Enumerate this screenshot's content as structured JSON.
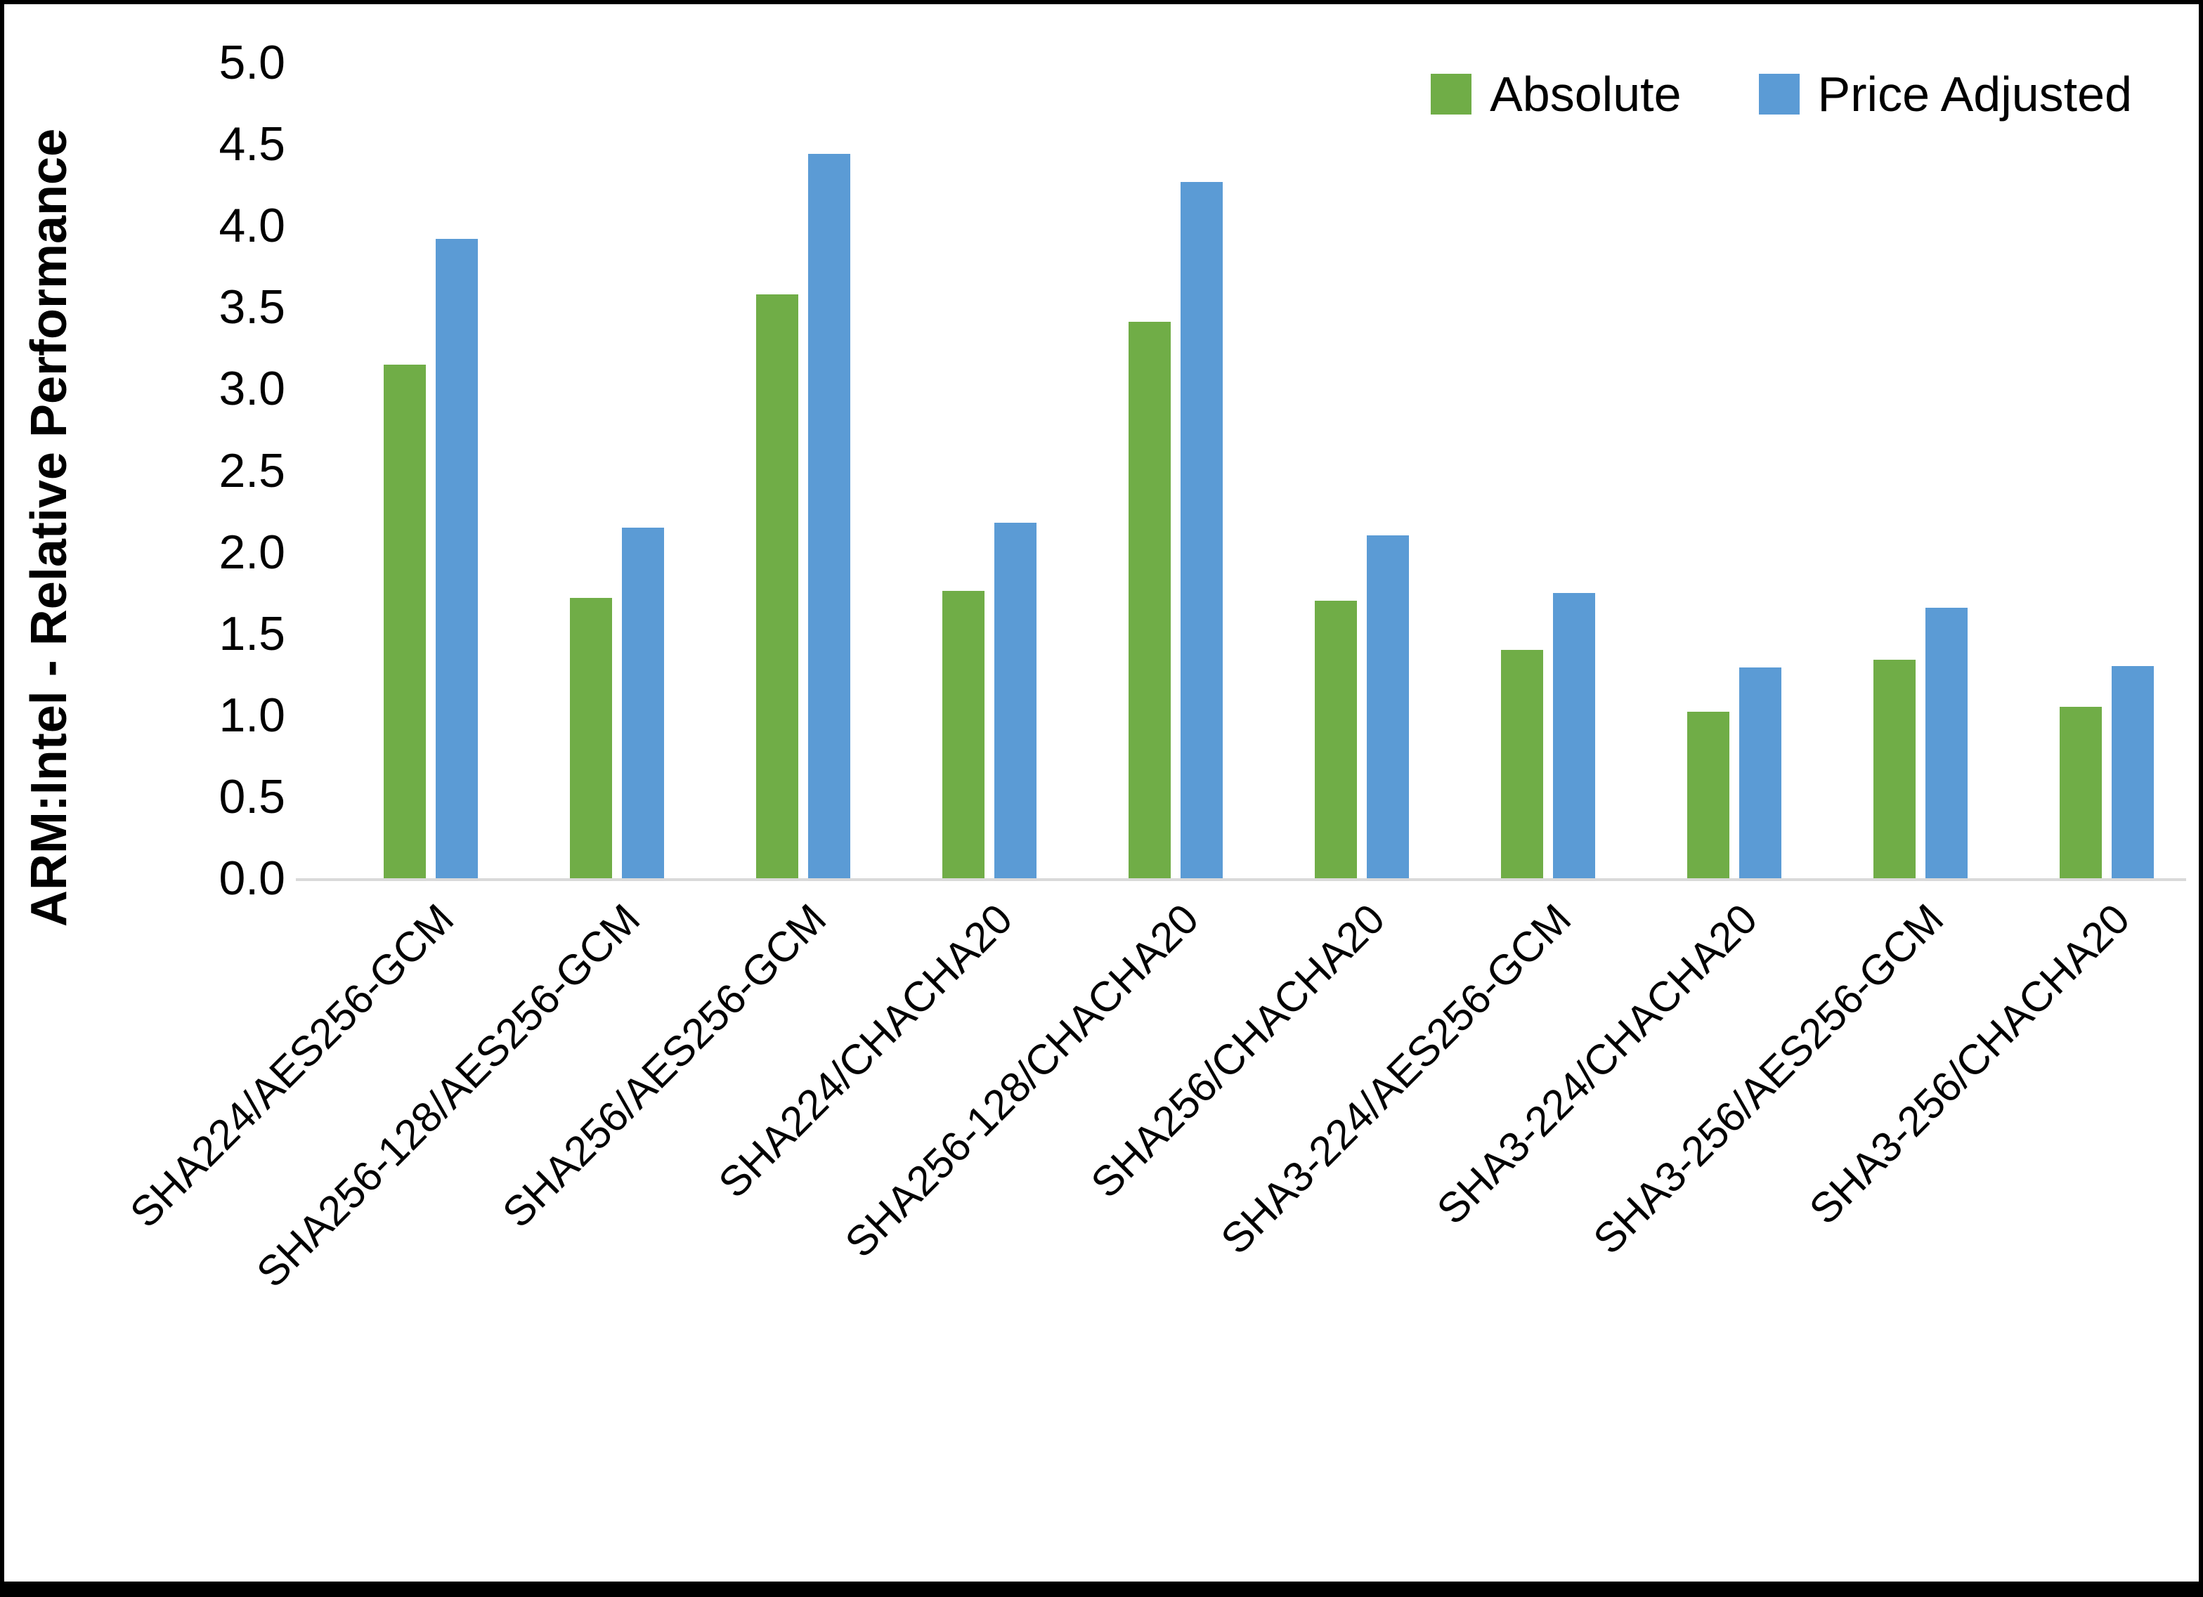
{
  "colors": {
    "absolute_series": "#70AD47",
    "price_adjusted_series": "#5B9BD5",
    "axis_line": "#D9D9D9",
    "frame_border": "#000000",
    "background": "#FFFFFF"
  },
  "chart_data": {
    "type": "bar",
    "title": "",
    "xlabel": "",
    "ylabel": "ARM:Intel - Relative Performance",
    "ylim": [
      0.0,
      5.0
    ],
    "ytick_step": 0.5,
    "yticks": [
      "0.0",
      "0.5",
      "1.0",
      "1.5",
      "2.0",
      "2.5",
      "3.0",
      "3.5",
      "4.0",
      "4.5",
      "5.0"
    ],
    "grid": false,
    "legend_position": "top-right",
    "categories": [
      "SHA224/AES256-GCM",
      "SHA256-128/AES256-GCM",
      "SHA256/AES256-GCM",
      "SHA224/CHACHA20",
      "SHA256-128/CHACHA20",
      "SHA256/CHACHA20",
      "SHA3-224/AES256-GCM",
      "SHA3-224/CHACHA20",
      "SHA3-256/AES256-GCM",
      "SHA3-256/CHACHA20"
    ],
    "series": [
      {
        "name": "Absolute",
        "color": "#70AD47",
        "values": [
          3.15,
          1.72,
          3.58,
          1.76,
          3.41,
          1.7,
          1.4,
          1.02,
          1.34,
          1.05
        ]
      },
      {
        "name": "Price Adjusted",
        "color": "#5B9BD5",
        "values": [
          3.92,
          2.15,
          4.44,
          2.18,
          4.27,
          2.1,
          1.75,
          1.29,
          1.66,
          1.3
        ]
      }
    ]
  }
}
